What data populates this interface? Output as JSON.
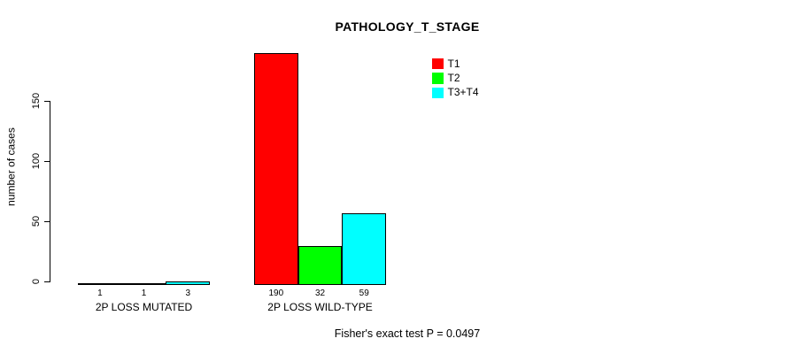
{
  "title": "PATHOLOGY_T_STAGE",
  "ylabel": "number of cases",
  "footer": "Fisher's exact test P = 0.0497",
  "colors": {
    "t1": "#FF0000",
    "t2": "#00FF00",
    "t3t4": "#00FFFF",
    "axis": "#000000",
    "background": "#FFFFFF"
  },
  "chart_data": {
    "type": "bar",
    "title": "PATHOLOGY_T_STAGE",
    "xlabel": "",
    "ylabel": "number of cases",
    "categories": [
      "2P LOSS MUTATED",
      "2P LOSS WILD-TYPE"
    ],
    "series": [
      {
        "name": "T1",
        "color": "#FF0000",
        "values": [
          1,
          190
        ]
      },
      {
        "name": "T2",
        "color": "#00FF00",
        "values": [
          1,
          32
        ]
      },
      {
        "name": "T3+T4",
        "color": "#00FFFF",
        "values": [
          3,
          59
        ]
      }
    ],
    "yticks": [
      0,
      50,
      100,
      150
    ],
    "ylim": [
      0,
      190
    ],
    "grid": false,
    "bar_value_labels_shown": true,
    "legend_position": "top-right",
    "annotation": "Fisher's exact test P = 0.0497"
  }
}
